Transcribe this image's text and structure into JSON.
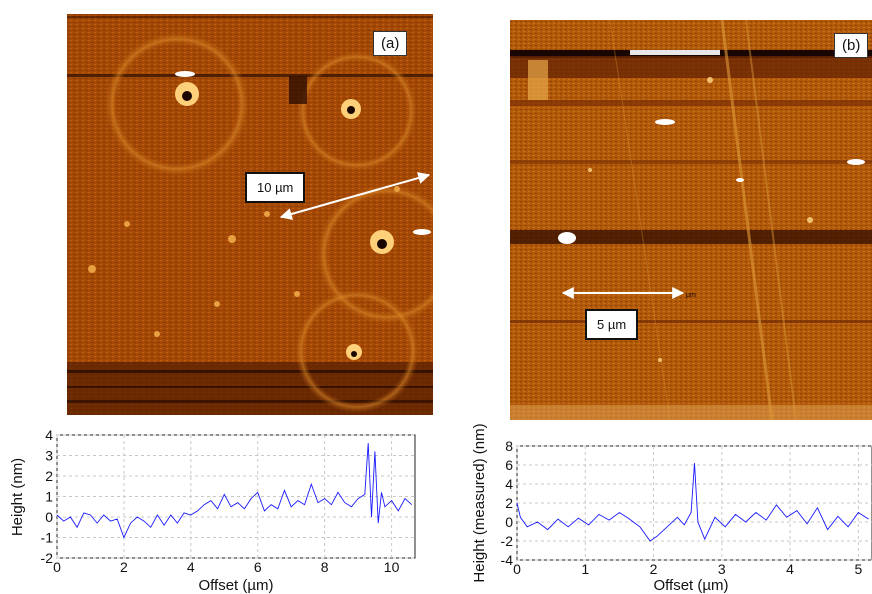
{
  "panels": {
    "a": {
      "label": "(a)",
      "scale_text": "10 µm"
    },
    "b": {
      "label": "(b)",
      "scale_text": "5 µm",
      "arrow_tag": "µm"
    }
  },
  "colors": {
    "afm_dark": "#3a1400",
    "afm_mid": "#a44a08",
    "afm_light": "#d8822a",
    "profile_line": "#1a1aff",
    "grid": "#c8c8c8"
  },
  "chart_data": [
    {
      "type": "line",
      "panel": "(a)",
      "xlabel": "Offset (µm)",
      "ylabel": "Height (nm)",
      "xlim": [
        0,
        10.7
      ],
      "ylim": [
        -2,
        4
      ],
      "xticks": [
        0,
        2,
        4,
        6,
        8,
        10
      ],
      "yticks": [
        -2,
        -1,
        0,
        1,
        2,
        3,
        4
      ],
      "grid": true,
      "x": [
        0,
        0.2,
        0.4,
        0.6,
        0.8,
        1.0,
        1.2,
        1.4,
        1.6,
        1.8,
        2.0,
        2.2,
        2.4,
        2.6,
        2.8,
        3.0,
        3.2,
        3.4,
        3.6,
        3.8,
        4.0,
        4.2,
        4.4,
        4.6,
        4.8,
        5.0,
        5.2,
        5.4,
        5.6,
        5.8,
        6.0,
        6.2,
        6.4,
        6.6,
        6.8,
        7.0,
        7.2,
        7.4,
        7.6,
        7.8,
        8.0,
        8.2,
        8.4,
        8.6,
        8.8,
        9.0,
        9.2,
        9.3,
        9.4,
        9.5,
        9.6,
        9.7,
        9.8,
        10.0,
        10.2,
        10.4,
        10.6
      ],
      "y": [
        0.1,
        -0.2,
        0.0,
        -0.5,
        0.2,
        0.1,
        -0.3,
        0.1,
        -0.2,
        -0.1,
        -1.0,
        -0.3,
        0.0,
        -0.2,
        -0.5,
        0.1,
        -0.4,
        0.1,
        -0.3,
        0.2,
        0.1,
        0.3,
        0.6,
        0.8,
        0.4,
        1.1,
        0.5,
        0.7,
        0.4,
        0.9,
        1.2,
        0.3,
        0.6,
        0.4,
        1.3,
        0.5,
        0.8,
        0.6,
        1.6,
        0.7,
        0.9,
        0.6,
        1.2,
        0.7,
        0.5,
        0.9,
        1.1,
        3.6,
        0.0,
        3.2,
        -0.3,
        1.2,
        0.5,
        0.8,
        0.3,
        0.9,
        0.6
      ]
    },
    {
      "type": "line",
      "panel": "(b)",
      "xlabel": "Offset (µm)",
      "ylabel": "Height (measured) (nm)",
      "xlim": [
        0,
        5.2
      ],
      "ylim": [
        -4,
        8
      ],
      "xticks": [
        0,
        1,
        2,
        3,
        4,
        5
      ],
      "yticks": [
        -4,
        -2,
        0,
        2,
        4,
        6,
        8
      ],
      "grid": true,
      "x": [
        0,
        0.05,
        0.15,
        0.3,
        0.45,
        0.6,
        0.75,
        0.9,
        1.05,
        1.2,
        1.35,
        1.5,
        1.65,
        1.8,
        1.95,
        2.05,
        2.2,
        2.35,
        2.45,
        2.55,
        2.6,
        2.65,
        2.75,
        2.9,
        3.05,
        3.2,
        3.35,
        3.5,
        3.65,
        3.8,
        3.95,
        4.1,
        4.25,
        4.4,
        4.55,
        4.7,
        4.85,
        5.0,
        5.15
      ],
      "y": [
        2.0,
        0.5,
        -0.5,
        0.0,
        -0.8,
        0.3,
        -0.5,
        0.4,
        -0.3,
        0.8,
        0.2,
        1.0,
        0.3,
        -0.5,
        -2.0,
        -1.5,
        -0.5,
        0.5,
        -0.3,
        1.0,
        6.2,
        0.0,
        -1.8,
        0.5,
        -0.5,
        0.8,
        0.0,
        1.0,
        0.2,
        1.8,
        0.5,
        1.2,
        -0.2,
        1.5,
        -0.8,
        0.6,
        -0.5,
        1.0,
        0.3
      ]
    }
  ]
}
